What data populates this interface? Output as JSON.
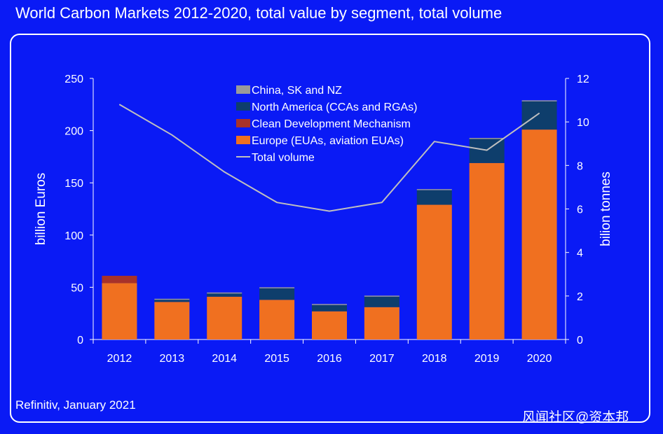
{
  "title": "World Carbon Markets 2012-2020, total value by segment, total volume",
  "source": "Refinitiv, January 2021",
  "watermark": "风闻社区@资本邦",
  "chart_data": {
    "type": "bar",
    "stacked": true,
    "categories": [
      "2012",
      "2013",
      "2014",
      "2015",
      "2016",
      "2017",
      "2018",
      "2019",
      "2020"
    ],
    "series": [
      {
        "name": "Europe (EUAs, aviation EUAs)",
        "color": "#f07020",
        "values": [
          54,
          36,
          41,
          38,
          27,
          31,
          129,
          169,
          201
        ]
      },
      {
        "name": "Clean Development Mechanism",
        "color": "#a8322a",
        "values": [
          7,
          0,
          0,
          0,
          0,
          0,
          0,
          0,
          0
        ]
      },
      {
        "name": "North America (CCAs and RGAs)",
        "color": "#0e3e6c",
        "values": [
          0,
          2,
          3,
          11,
          6,
          10,
          14,
          23,
          27
        ]
      },
      {
        "name": "China, SK and NZ",
        "color": "#9a9a9a",
        "values": [
          0,
          1,
          1,
          1,
          1,
          1,
          1,
          1,
          1
        ]
      }
    ],
    "line": {
      "name": "Total volume",
      "color": "#bfbfbf",
      "axis": "right",
      "values": [
        10.8,
        9.4,
        7.7,
        6.3,
        5.9,
        6.3,
        9.1,
        8.7,
        10.4
      ]
    },
    "legend_order": [
      "China, SK and NZ",
      "North America (CCAs and RGAs)",
      "Clean Development Mechanism",
      "Europe (EUAs, aviation EUAs)",
      "Total volume"
    ],
    "ylabel": "billion Euros",
    "ylim": [
      0,
      250
    ],
    "yticks": [
      0,
      50,
      100,
      150,
      200,
      250
    ],
    "y2label": "bilion tonnes",
    "y2lim": [
      0,
      12
    ],
    "y2ticks": [
      0,
      2,
      4,
      6,
      8,
      10,
      12
    ],
    "legend_position": "top-center"
  }
}
